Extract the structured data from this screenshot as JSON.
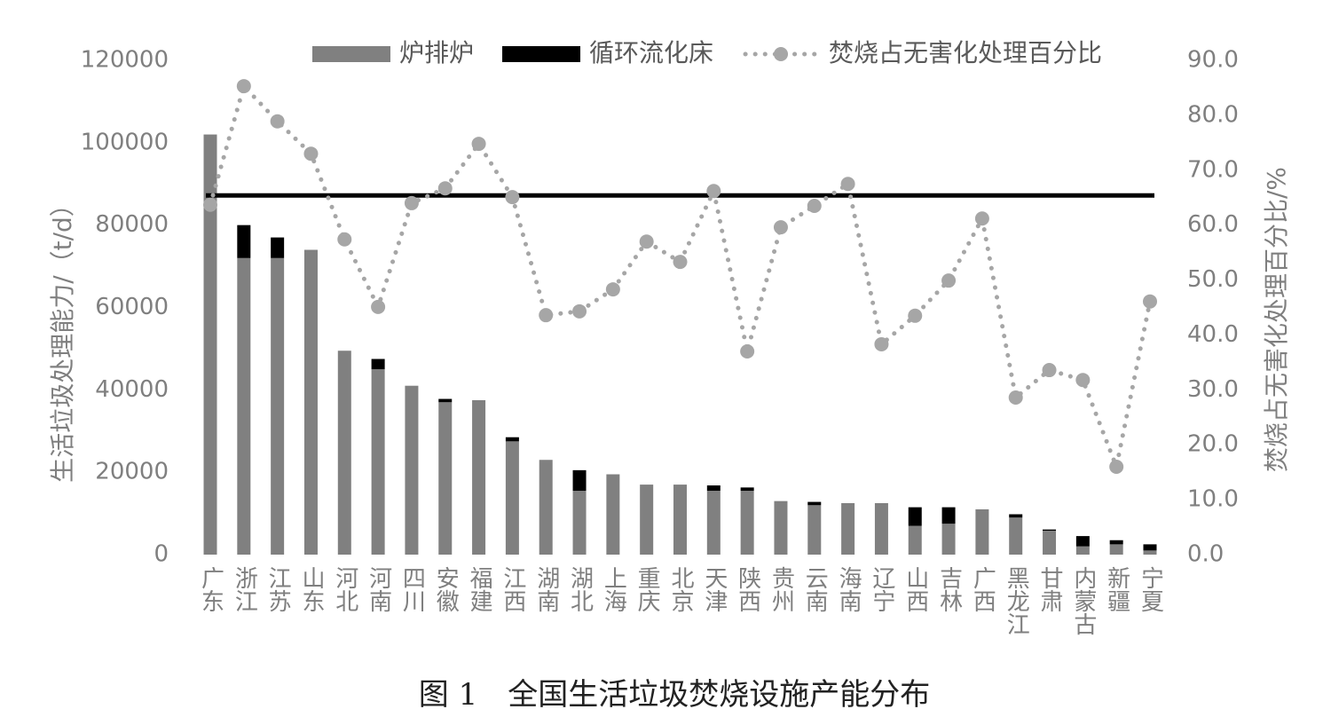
{
  "chart_data": {
    "type": "bar-line",
    "caption": "图 1　全国生活垃圾焚烧设施产能分布",
    "ylabel": "生活垃圾处理能力/（t/d）",
    "y2label": "焚烧占无害化处理百分比/%",
    "categories": [
      "广东",
      "浙江",
      "江苏",
      "山东",
      "河北",
      "河南",
      "四川",
      "安徽",
      "福建",
      "江西",
      "湖南",
      "湖北",
      "上海",
      "重庆",
      "北京",
      "天津",
      "陕西",
      "贵州",
      "云南",
      "海南",
      "辽宁",
      "山西",
      "吉林",
      "广西",
      "黑龙江",
      "甘肃",
      "内蒙古",
      "新疆",
      "宁夏"
    ],
    "series": [
      {
        "name": "炉排炉",
        "type": "bar",
        "color": "#808080",
        "values": [
          102000,
          72000,
          72000,
          74000,
          49500,
          45000,
          41000,
          37000,
          37500,
          27500,
          23000,
          15500,
          19500,
          17000,
          17000,
          15500,
          15500,
          13000,
          12000,
          12500,
          12500,
          7000,
          7500,
          11000,
          9000,
          5800,
          2000,
          2500,
          1000
        ]
      },
      {
        "name": "循环流化床",
        "type": "bar",
        "color": "#000000",
        "values": [
          0,
          8000,
          5000,
          0,
          0,
          2500,
          0,
          800,
          0,
          1000,
          0,
          5000,
          0,
          0,
          0,
          1300,
          800,
          0,
          800,
          0,
          0,
          4500,
          4000,
          0,
          800,
          300,
          2500,
          1000,
          1500
        ]
      },
      {
        "name": "焚烧占无害化处理百分比",
        "type": "line",
        "axis": "y2",
        "color": "#a6a6a6",
        "values": [
          63.7,
          85.3,
          78.9,
          73.0,
          57.4,
          45.1,
          64.0,
          66.7,
          74.8,
          65.1,
          43.6,
          44.3,
          48.3,
          57.0,
          53.3,
          66.2,
          37.0,
          59.6,
          63.5,
          67.5,
          38.3,
          43.5,
          49.9,
          61.2,
          28.6,
          33.6,
          31.8,
          16.0,
          46.1
        ]
      }
    ],
    "reference_line_y2": 65.4,
    "reference_line_color": "#000000",
    "ylim": [
      0,
      120000
    ],
    "yticks": [
      0,
      20000,
      40000,
      60000,
      80000,
      100000,
      120000
    ],
    "y2lim": [
      0,
      90
    ],
    "y2ticks": [
      {
        "value": 0,
        "label": "0.0"
      },
      {
        "value": 10,
        "label": "10.0"
      },
      {
        "value": 20,
        "label": "20.0"
      },
      {
        "value": 30,
        "label": "30.0"
      },
      {
        "value": 40,
        "label": "40.0"
      },
      {
        "value": 50,
        "label": "50.0"
      },
      {
        "value": 60,
        "label": "60.0"
      },
      {
        "value": 70,
        "label": "70.0"
      },
      {
        "value": 80,
        "label": "80.0"
      },
      {
        "value": 90,
        "label": "90.0"
      }
    ],
    "legend": "top"
  }
}
